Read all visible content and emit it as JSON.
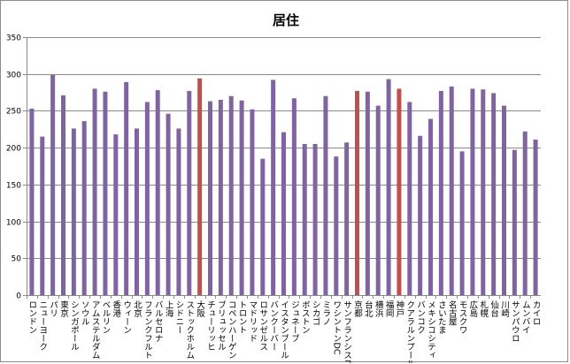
{
  "chart_data": {
    "type": "bar",
    "title": "居住",
    "xlabel": "",
    "ylabel": "",
    "ylim": [
      0,
      350
    ],
    "yticks": [
      0,
      50,
      100,
      150,
      200,
      250,
      300,
      350
    ],
    "grid": true,
    "legend": "none",
    "colors": {
      "default": "#8064a2",
      "highlight": "#c0504d",
      "grid": "#8a8a8a"
    },
    "categories": [
      "ロンドン",
      "ニューヨーク",
      "パリ",
      "東京",
      "シンガポール",
      "ソウル",
      "アムステルダム",
      "ベルリン",
      "香港",
      "ウィーン",
      "北京",
      "フランクフルト",
      "バルセロナ",
      "上海",
      "シドニー",
      "ストックホルム",
      "大阪",
      "チューリッヒ",
      "ブリュッセル",
      "コペンハーゲン",
      "トロント",
      "マドリッド",
      "ロサンゼルス",
      "バンクーバー",
      "イスタンブール",
      "ジュネーブ",
      "ボストン",
      "シカゴ",
      "ミラノ",
      "ワシントンDC",
      "サンフランシスコ",
      "京都",
      "台北",
      "横浜",
      "福岡",
      "神戸",
      "クアラルンプール",
      "バンコク",
      "メキシコシティ",
      "さいたま",
      "名古屋",
      "モスクワ",
      "広島",
      "札幌",
      "仙台",
      "川崎",
      "サンパウロ",
      "ムンバイ",
      "カイロ"
    ],
    "values": [
      253,
      215,
      299,
      271,
      226,
      236,
      280,
      276,
      218,
      289,
      226,
      262,
      278,
      246,
      226,
      277,
      294,
      263,
      265,
      270,
      264,
      252,
      185,
      292,
      221,
      267,
      205,
      205,
      270,
      188,
      207,
      277,
      276,
      257,
      293,
      280,
      262,
      216,
      239,
      277,
      283,
      195,
      280,
      279,
      274,
      257,
      197,
      222,
      211
    ],
    "highlighted": [
      "大阪",
      "京都",
      "神戸"
    ]
  }
}
